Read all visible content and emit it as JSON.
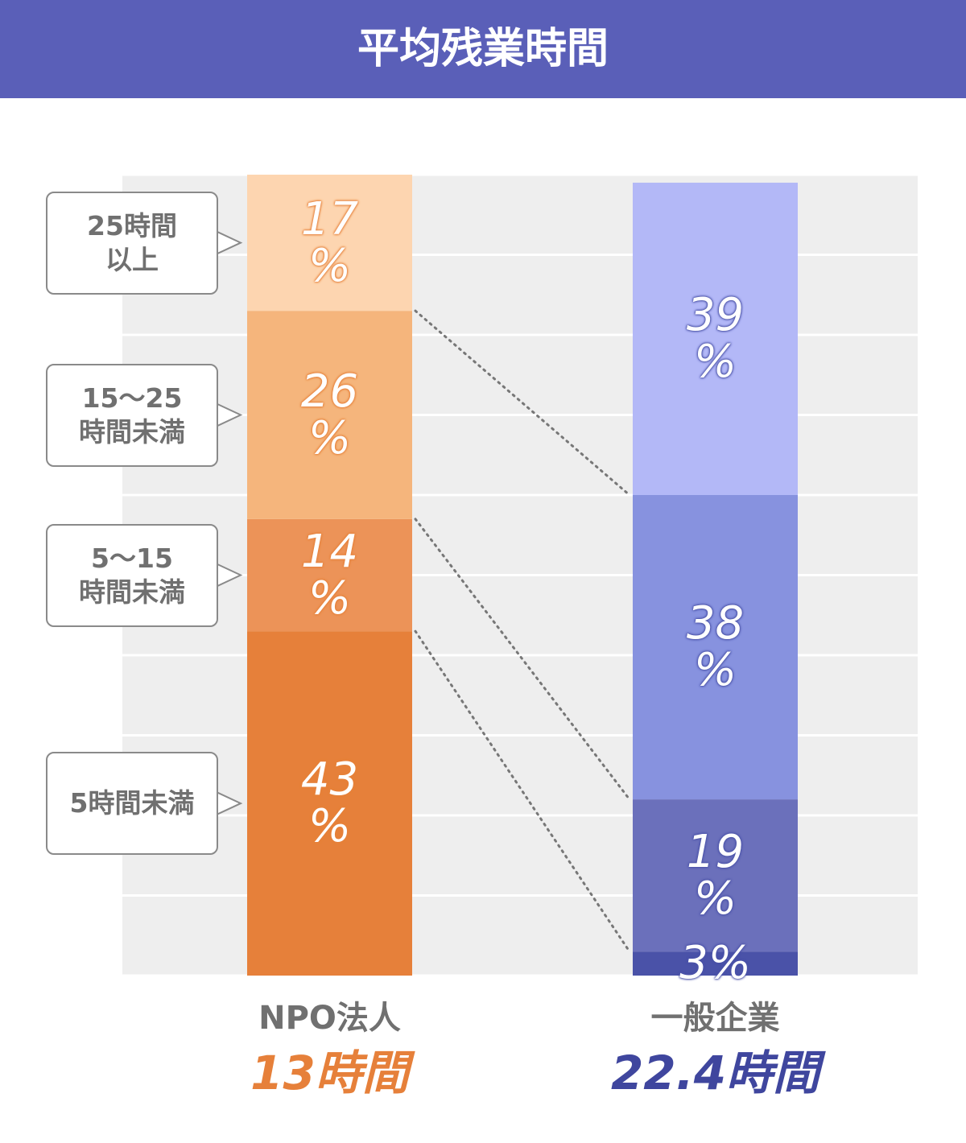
{
  "chart_data": {
    "type": "stacked_bar_100",
    "title": "平均残業時間",
    "categories": [
      "NPO法人",
      "一般企業"
    ],
    "category_totals": [
      "13時間",
      "22.4時間"
    ],
    "category_total_colors": [
      "#e6803a",
      "#3f469e"
    ],
    "series": [
      {
        "name": "5時間未満",
        "colors": [
          "#e6803a",
          "#4a52a8"
        ],
        "values": [
          43,
          3
        ],
        "value_labels": [
          "43\n%",
          "3%"
        ]
      },
      {
        "name": "5〜15\n時間未満",
        "colors": [
          "#ec9358",
          "#6b70bb"
        ],
        "values": [
          14,
          19
        ],
        "value_labels": [
          "14\n%",
          "19\n%"
        ]
      },
      {
        "name": "15〜25\n時間未満",
        "colors": [
          "#f5b57c",
          "#8792df"
        ],
        "values": [
          26,
          38
        ],
        "value_labels": [
          "26\n%",
          "38\n%"
        ]
      },
      {
        "name": "25時間\n以上",
        "colors": [
          "#fdd5b0",
          "#b3b8f7"
        ],
        "values": [
          17,
          39
        ],
        "value_labels": [
          "17\n%",
          "39\n%"
        ]
      }
    ],
    "ylim": [
      0,
      100
    ],
    "yticks": [
      0,
      10,
      20,
      30,
      40,
      50,
      60,
      70,
      80,
      90,
      100
    ],
    "grid": true
  }
}
